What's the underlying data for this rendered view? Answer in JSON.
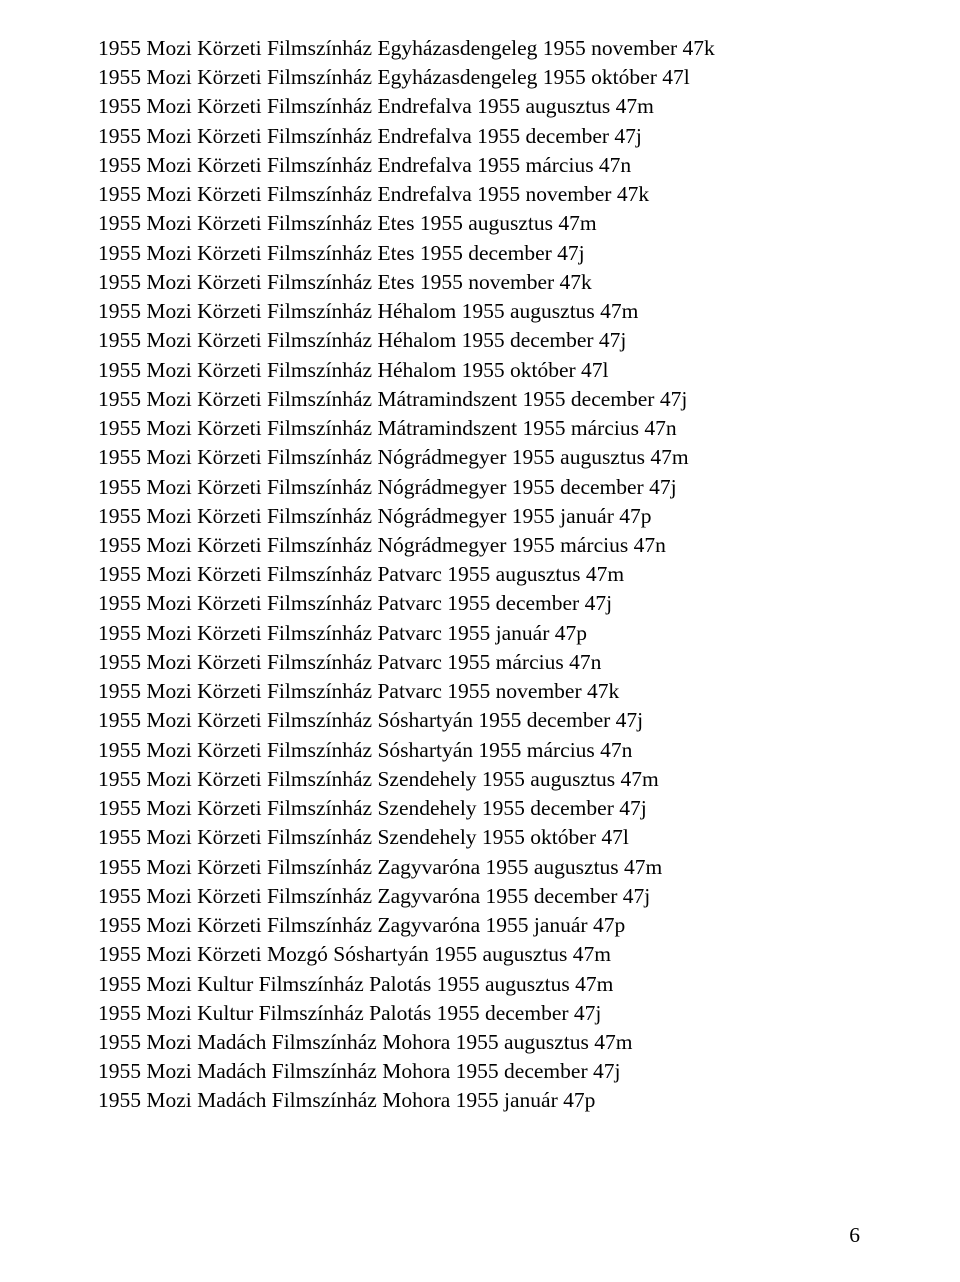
{
  "lines": [
    "1955 Mozi Körzeti Filmszínház Egyházasdengeleg 1955 november   47k",
    "1955 Mozi Körzeti Filmszínház Egyházasdengeleg 1955 október   47l",
    "1955 Mozi Körzeti Filmszínház Endrefalva 1955 augusztus   47m",
    "1955 Mozi Körzeti Filmszínház Endrefalva 1955 december   47j",
    "1955 Mozi Körzeti Filmszínház Endrefalva 1955 március   47n",
    "1955 Mozi Körzeti Filmszínház Endrefalva 1955 november   47k",
    "1955 Mozi Körzeti Filmszínház Etes 1955 augusztus   47m",
    "1955 Mozi Körzeti Filmszínház Etes 1955 december    47j",
    "1955 Mozi Körzeti Filmszínház Etes 1955 november    47k",
    "1955 Mozi Körzeti Filmszínház Héhalom 1955 augusztus   47m",
    "1955 Mozi Körzeti Filmszínház Héhalom 1955 december    47j",
    "1955 Mozi Körzeti Filmszínház Héhalom 1955 október    47l",
    "1955 Mozi Körzeti Filmszínház Mátramindszent 1955 december    47j",
    "1955 Mozi Körzeti Filmszínház Mátramindszent 1955 március   47n",
    "1955 Mozi Körzeti Filmszínház Nógrádmegyer 1955 augusztus    47m",
    "1955 Mozi Körzeti Filmszínház Nógrádmegyer 1955 december     47j",
    "1955 Mozi Körzeti Filmszínház Nógrádmegyer 1955 január   47p",
    "1955 Mozi Körzeti Filmszínház Nógrádmegyer 1955 március    47n",
    "1955 Mozi Körzeti Filmszínház Patvarc 1955 augusztus   47m",
    "1955 Mozi Körzeti Filmszínház Patvarc 1955 december    47j",
    "1955 Mozi Körzeti Filmszínház Patvarc 1955 január   47p",
    "1955 Mozi Körzeti Filmszínház Patvarc 1955 március   47n",
    "1955 Mozi Körzeti Filmszínház Patvarc 1955 november    47k",
    "1955 Mozi Körzeti Filmszínház Sóshartyán 1955 december    47j",
    "1955 Mozi Körzeti Filmszínház Sóshartyán 1955 március   47n",
    "1955 Mozi Körzeti Filmszínház Szendehely 1955 augusztus    47m",
    "1955 Mozi Körzeti Filmszínház Szendehely 1955 december     47j",
    "1955 Mozi Körzeti Filmszínház Szendehely 1955 október     47l",
    "1955 Mozi Körzeti Filmszínház Zagyvaróna 1955 augusztus   47m",
    "1955 Mozi Körzeti Filmszínház Zagyvaróna 1955 december    47j",
    "1955 Mozi Körzeti Filmszínház Zagyvaróna 1955 január   47p",
    "1955 Mozi Körzeti Mozgó Sóshartyán 1955 augusztus   47m",
    "1955 Mozi Kultur Filmszínház Palotás 1955 augusztus   47m",
    "1955 Mozi Kultur Filmszínház Palotás 1955 december    47j",
    "1955 Mozi Madách Filmszínház Mohora 1955 augusztus    47m",
    "1955 Mozi Madách Filmszínház Mohora 1955 december    47j",
    "1955 Mozi Madách Filmszínház Mohora 1955 január   47p"
  ],
  "pageNumber": "6",
  "style": {
    "fontFamily": "Times New Roman",
    "fontSize": 21.5,
    "textColor": "#000000",
    "backgroundColor": "#ffffff",
    "lineHeight": 1.36
  }
}
